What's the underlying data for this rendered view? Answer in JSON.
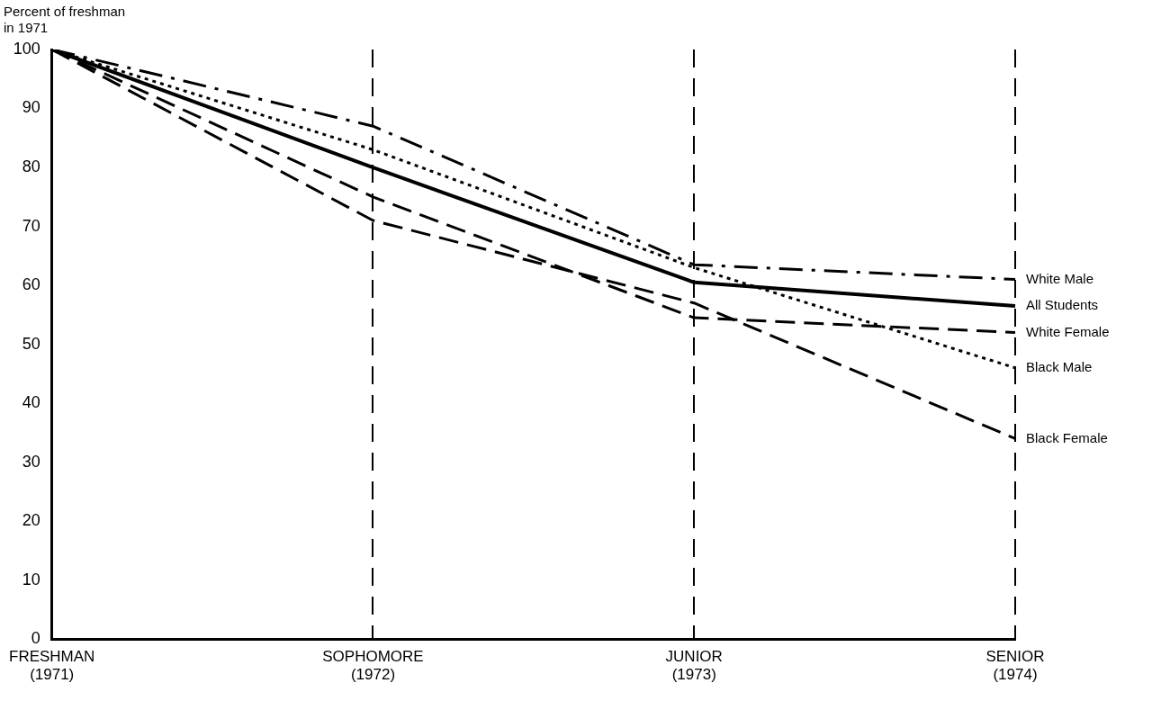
{
  "chart_data": {
    "type": "line",
    "ylabel": "Percent of freshman in 1971",
    "categories": [
      "FRESHMAN\n(1971)",
      "SOPHOMORE\n(1972)",
      "JUNIOR\n(1973)",
      "SENIOR\n(1974)"
    ],
    "ylim": [
      0,
      100
    ],
    "yticks": [
      0,
      10,
      20,
      30,
      40,
      50,
      60,
      70,
      80,
      90,
      100
    ],
    "grid": "x",
    "legend": false,
    "marker": "none",
    "series": [
      {
        "name": "White Male",
        "color": "#000000",
        "line_style": "dashdot",
        "values": [
          100,
          87,
          63.5,
          61
        ]
      },
      {
        "name": "All Students",
        "color": "#000000",
        "line_style": "solid",
        "values": [
          100,
          80,
          60.5,
          56.5
        ]
      },
      {
        "name": "White Female",
        "color": "#000000",
        "line_style": "dashed",
        "values": [
          100,
          75,
          54.5,
          52
        ]
      },
      {
        "name": "Black Male",
        "color": "#000000",
        "line_style": "dotted",
        "values": [
          100,
          83,
          63,
          46
        ]
      },
      {
        "name": "Black Female",
        "color": "#000000",
        "line_style": "dashed",
        "values": [
          100,
          71,
          57,
          34
        ]
      }
    ]
  }
}
